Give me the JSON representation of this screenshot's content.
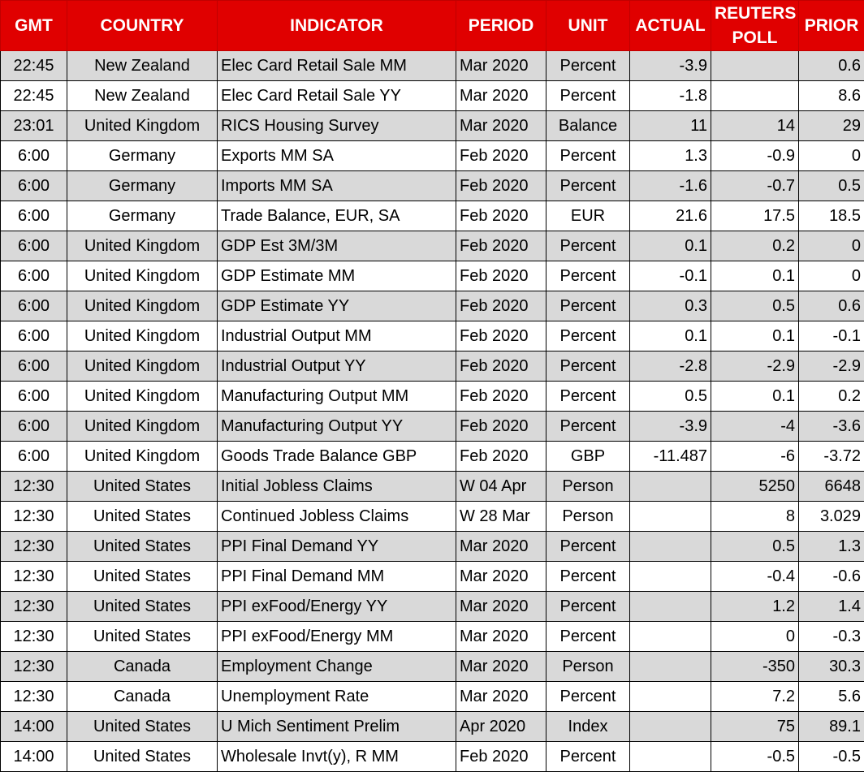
{
  "table": {
    "header": [
      "GMT",
      "COUNTRY",
      "INDICATOR",
      "PERIOD",
      "UNIT",
      "ACTUAL",
      "REUTERS POLL",
      "PRIOR"
    ],
    "rows": [
      [
        "22:45",
        "New Zealand",
        "Elec Card Retail Sale MM",
        "Mar 2020",
        "Percent",
        "-3.9",
        null,
        "0.6"
      ],
      [
        "22:45",
        "New Zealand",
        "Elec Card Retail Sale YY",
        "Mar 2020",
        "Percent",
        "-1.8",
        null,
        "8.6"
      ],
      [
        "23:01",
        "United Kingdom",
        "RICS Housing Survey",
        "Mar 2020",
        "Balance",
        "11",
        "14",
        "29"
      ],
      [
        "6:00",
        "Germany",
        "Exports MM SA",
        "Feb 2020",
        "Percent",
        "1.3",
        "-0.9",
        "0"
      ],
      [
        "6:00",
        "Germany",
        "Imports MM SA",
        "Feb 2020",
        "Percent",
        "-1.6",
        "-0.7",
        "0.5"
      ],
      [
        "6:00",
        "Germany",
        "Trade Balance, EUR, SA",
        "Feb 2020",
        "EUR",
        "21.6",
        "17.5",
        "18.5"
      ],
      [
        "6:00",
        "United Kingdom",
        "GDP Est 3M/3M",
        "Feb 2020",
        "Percent",
        "0.1",
        "0.2",
        "0"
      ],
      [
        "6:00",
        "United Kingdom",
        "GDP Estimate MM",
        "Feb 2020",
        "Percent",
        "-0.1",
        "0.1",
        "0"
      ],
      [
        "6:00",
        "United Kingdom",
        "GDP Estimate YY",
        "Feb 2020",
        "Percent",
        "0.3",
        "0.5",
        "0.6"
      ],
      [
        "6:00",
        "United Kingdom",
        "Industrial Output MM",
        "Feb 2020",
        "Percent",
        "0.1",
        "0.1",
        "-0.1"
      ],
      [
        "6:00",
        "United Kingdom",
        "Industrial Output YY",
        "Feb 2020",
        "Percent",
        "-2.8",
        "-2.9",
        "-2.9"
      ],
      [
        "6:00",
        "United Kingdom",
        "Manufacturing Output MM",
        "Feb 2020",
        "Percent",
        "0.5",
        "0.1",
        "0.2"
      ],
      [
        "6:00",
        "United Kingdom",
        "Manufacturing Output YY",
        "Feb 2020",
        "Percent",
        "-3.9",
        "-4",
        "-3.6"
      ],
      [
        "6:00",
        "United Kingdom",
        "Goods Trade Balance GBP",
        "Feb 2020",
        "GBP",
        "-11.487",
        "-6",
        "-3.72"
      ],
      [
        "12:30",
        "United States",
        "Initial Jobless Claims",
        "W 04 Apr",
        "Person",
        null,
        "5250",
        "6648"
      ],
      [
        "12:30",
        "United States",
        "Continued Jobless Claims",
        "W 28 Mar",
        "Person",
        null,
        "8",
        "3.029"
      ],
      [
        "12:30",
        "United States",
        "PPI Final Demand YY",
        "Mar 2020",
        "Percent",
        null,
        "0.5",
        "1.3"
      ],
      [
        "12:30",
        "United States",
        "PPI Final Demand MM",
        "Mar 2020",
        "Percent",
        null,
        "-0.4",
        "-0.6"
      ],
      [
        "12:30",
        "United States",
        "PPI exFood/Energy YY",
        "Mar 2020",
        "Percent",
        null,
        "1.2",
        "1.4"
      ],
      [
        "12:30",
        "United States",
        "PPI exFood/Energy MM",
        "Mar 2020",
        "Percent",
        null,
        "0",
        "-0.3"
      ],
      [
        "12:30",
        "Canada",
        "Employment Change",
        "Mar 2020",
        "Person",
        null,
        "-350",
        "30.3"
      ],
      [
        "12:30",
        "Canada",
        "Unemployment Rate",
        "Mar 2020",
        "Percent",
        null,
        "7.2",
        "5.6"
      ],
      [
        "14:00",
        "United States",
        "U Mich Sentiment Prelim",
        "Apr 2020",
        "Index",
        null,
        "75",
        "89.1"
      ],
      [
        "14:00",
        "United States",
        "Wholesale Invt(y), R MM",
        "Feb 2020",
        "Percent",
        null,
        "-0.5",
        "-0.5"
      ]
    ]
  }
}
